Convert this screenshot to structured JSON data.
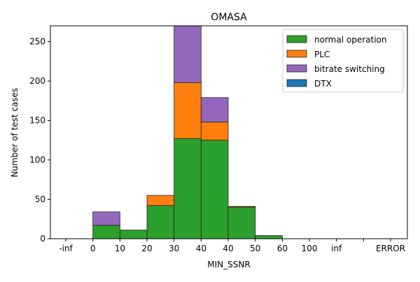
{
  "chart_data": {
    "type": "bar",
    "stacked": true,
    "title": "OMASA",
    "xlabel": "MIN_SSNR",
    "ylabel": "Number of test cases",
    "ylim": [
      0,
      270
    ],
    "yticks": [
      0,
      50,
      100,
      150,
      200,
      250
    ],
    "xtick_labels": [
      "-inf",
      "0",
      "10",
      "20",
      "30",
      "40",
      "40",
      "50",
      "60",
      "100",
      "inf",
      "",
      "ERROR"
    ],
    "bins": [
      {
        "from_tick": 1,
        "to_tick": 2
      },
      {
        "from_tick": 2,
        "to_tick": 3
      },
      {
        "from_tick": 3,
        "to_tick": 4
      },
      {
        "from_tick": 4,
        "to_tick": 5
      },
      {
        "from_tick": 5,
        "to_tick": 6
      },
      {
        "from_tick": 6,
        "to_tick": 7
      },
      {
        "from_tick": 7,
        "to_tick": 8
      }
    ],
    "bin_labels": [
      "0-10",
      "10-20",
      "20-30",
      "30-40",
      "40-40",
      "40-50",
      "50-60"
    ],
    "series": [
      {
        "name": "normal operation",
        "color": "#2ca02c",
        "values": [
          17,
          11,
          42,
          127,
          125,
          40,
          4
        ]
      },
      {
        "name": "PLC",
        "color": "#ff7f0e",
        "values": [
          0,
          0,
          13,
          71,
          23,
          1,
          0
        ]
      },
      {
        "name": "bitrate switching",
        "color": "#9467bd",
        "values": [
          17,
          0,
          0,
          73,
          31,
          0,
          0
        ]
      },
      {
        "name": "DTX",
        "color": "#1f77b4",
        "values": [
          0,
          0,
          0,
          0,
          0,
          0,
          0
        ]
      }
    ],
    "legend_position": "top-right",
    "grid": false
  }
}
